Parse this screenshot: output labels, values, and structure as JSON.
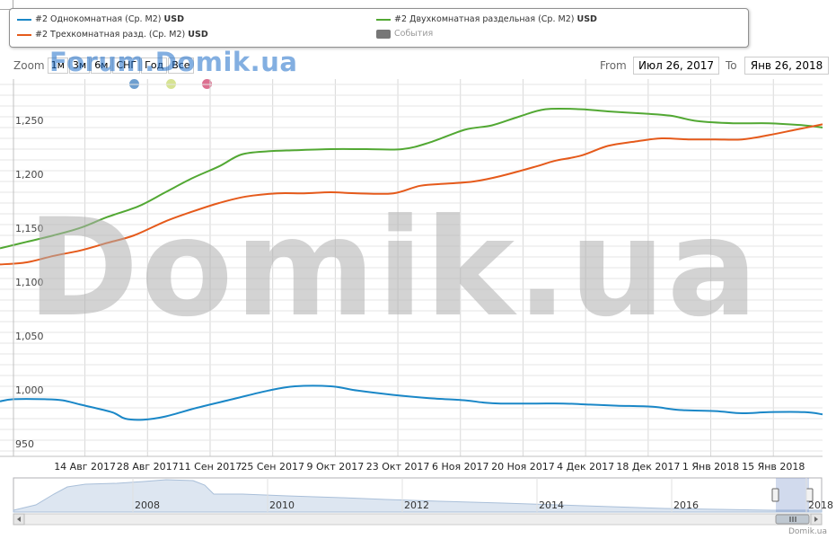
{
  "legend": {
    "items": [
      {
        "name": "#2 Однокомнатная (Ср. М2)",
        "unit": "USD",
        "color": "#1a87c7"
      },
      {
        "name": "#2 Двухкомнатная раздельная (Ср. М2)",
        "unit": "USD",
        "color": "#52a833"
      },
      {
        "name": "#2 Трехкомнатная разд. (Ср. М2)",
        "unit": "USD",
        "color": "#e55a1b"
      },
      {
        "name": "События",
        "unit": "",
        "color": "#777777"
      }
    ]
  },
  "zoom": {
    "label": "Zoom",
    "buttons": [
      "1м",
      "3м",
      "6м",
      "СНГ",
      "Год",
      "Все"
    ]
  },
  "watermark_top": "Forum.Domik.ua",
  "watermark_big": "Domik.ua",
  "range": {
    "from_label": "From",
    "from_value": "Июл 26, 2017",
    "to_label": "To",
    "to_value": "Янв 26, 2018"
  },
  "event_dots": [
    {
      "color": "#6d9ecf"
    },
    {
      "color": "#d6e392"
    },
    {
      "color": "#dc7090"
    }
  ],
  "credits": "Domik.ua",
  "chart_data": {
    "type": "line",
    "x_tick_labels": [
      "14 Авг 2017",
      "28 Авг 2017",
      "11 Сен 2017",
      "25 Сен 2017",
      "9 Окт 2017",
      "23 Окт 2017",
      "6 Ноя 2017",
      "20 Ноя 2017",
      "4 Дек 2017",
      "18 Дек 2017",
      "1 Янв 2018",
      "15 Янв 2018"
    ],
    "x_ticks_day": [
      19,
      33,
      47,
      61,
      75,
      89,
      103,
      117,
      131,
      145,
      159,
      173
    ],
    "x_range_day": [
      0,
      184
    ],
    "y_ticks": [
      950,
      1000,
      1050,
      1100,
      1150,
      1200,
      1250
    ],
    "y_tick_labels": [
      "950",
      "1,000",
      "1,050",
      "1,100",
      "1,150",
      "1,200",
      "1,250"
    ],
    "ylim": [
      945,
      1295
    ],
    "x_unit_note": "",
    "series": [
      {
        "name": "#2 Однокомнатная (Ср. М2)",
        "color": "#1a87c7",
        "points": [
          [
            0,
            996
          ],
          [
            3,
            998
          ],
          [
            10,
            998
          ],
          [
            14,
            997
          ],
          [
            18,
            993
          ],
          [
            25,
            986
          ],
          [
            28,
            980
          ],
          [
            32,
            979
          ],
          [
            37,
            982
          ],
          [
            44,
            990
          ],
          [
            52,
            998
          ],
          [
            60,
            1006
          ],
          [
            66,
            1010
          ],
          [
            74,
            1010
          ],
          [
            80,
            1006
          ],
          [
            88,
            1002
          ],
          [
            96,
            999
          ],
          [
            104,
            997
          ],
          [
            108,
            995
          ],
          [
            112,
            994
          ],
          [
            120,
            994
          ],
          [
            126,
            994
          ],
          [
            132,
            993
          ],
          [
            138,
            992
          ],
          [
            146,
            991
          ],
          [
            152,
            988
          ],
          [
            160,
            987
          ],
          [
            166,
            985
          ],
          [
            172,
            986
          ],
          [
            180,
            986
          ],
          [
            184,
            984
          ]
        ]
      },
      {
        "name": "#2 Двухкомнатная раздельная (Ср. М2)",
        "color": "#52a833",
        "points": [
          [
            0,
            1138
          ],
          [
            6,
            1144
          ],
          [
            12,
            1150
          ],
          [
            18,
            1157
          ],
          [
            24,
            1167
          ],
          [
            31,
            1177
          ],
          [
            37,
            1190
          ],
          [
            43,
            1203
          ],
          [
            49,
            1214
          ],
          [
            54,
            1225
          ],
          [
            60,
            1228
          ],
          [
            66,
            1229
          ],
          [
            74,
            1230
          ],
          [
            82,
            1230
          ],
          [
            90,
            1230
          ],
          [
            96,
            1236
          ],
          [
            104,
            1248
          ],
          [
            110,
            1252
          ],
          [
            116,
            1260
          ],
          [
            122,
            1267
          ],
          [
            130,
            1267
          ],
          [
            136,
            1265
          ],
          [
            144,
            1263
          ],
          [
            150,
            1261
          ],
          [
            156,
            1256
          ],
          [
            164,
            1254
          ],
          [
            172,
            1254
          ],
          [
            180,
            1252
          ],
          [
            184,
            1250
          ]
        ]
      },
      {
        "name": "#2 Трехкомнатная разд. (Ср. М2)",
        "color": "#e55a1b",
        "points": [
          [
            0,
            1123
          ],
          [
            6,
            1125
          ],
          [
            12,
            1131
          ],
          [
            18,
            1136
          ],
          [
            24,
            1143
          ],
          [
            30,
            1150
          ],
          [
            37,
            1163
          ],
          [
            43,
            1172
          ],
          [
            49,
            1180
          ],
          [
            55,
            1186
          ],
          [
            62,
            1189
          ],
          [
            68,
            1189
          ],
          [
            74,
            1190
          ],
          [
            80,
            1189
          ],
          [
            88,
            1189
          ],
          [
            94,
            1196
          ],
          [
            100,
            1198
          ],
          [
            106,
            1200
          ],
          [
            112,
            1205
          ],
          [
            120,
            1214
          ],
          [
            124,
            1219
          ],
          [
            130,
            1224
          ],
          [
            136,
            1233
          ],
          [
            142,
            1237
          ],
          [
            148,
            1240
          ],
          [
            154,
            1239
          ],
          [
            160,
            1239
          ],
          [
            166,
            1239
          ],
          [
            172,
            1243
          ],
          [
            178,
            1248
          ],
          [
            184,
            1253
          ]
        ]
      }
    ]
  },
  "navigator": {
    "year_labels": [
      "2008",
      "2010",
      "2012",
      "2014",
      "2016",
      "2018"
    ]
  }
}
